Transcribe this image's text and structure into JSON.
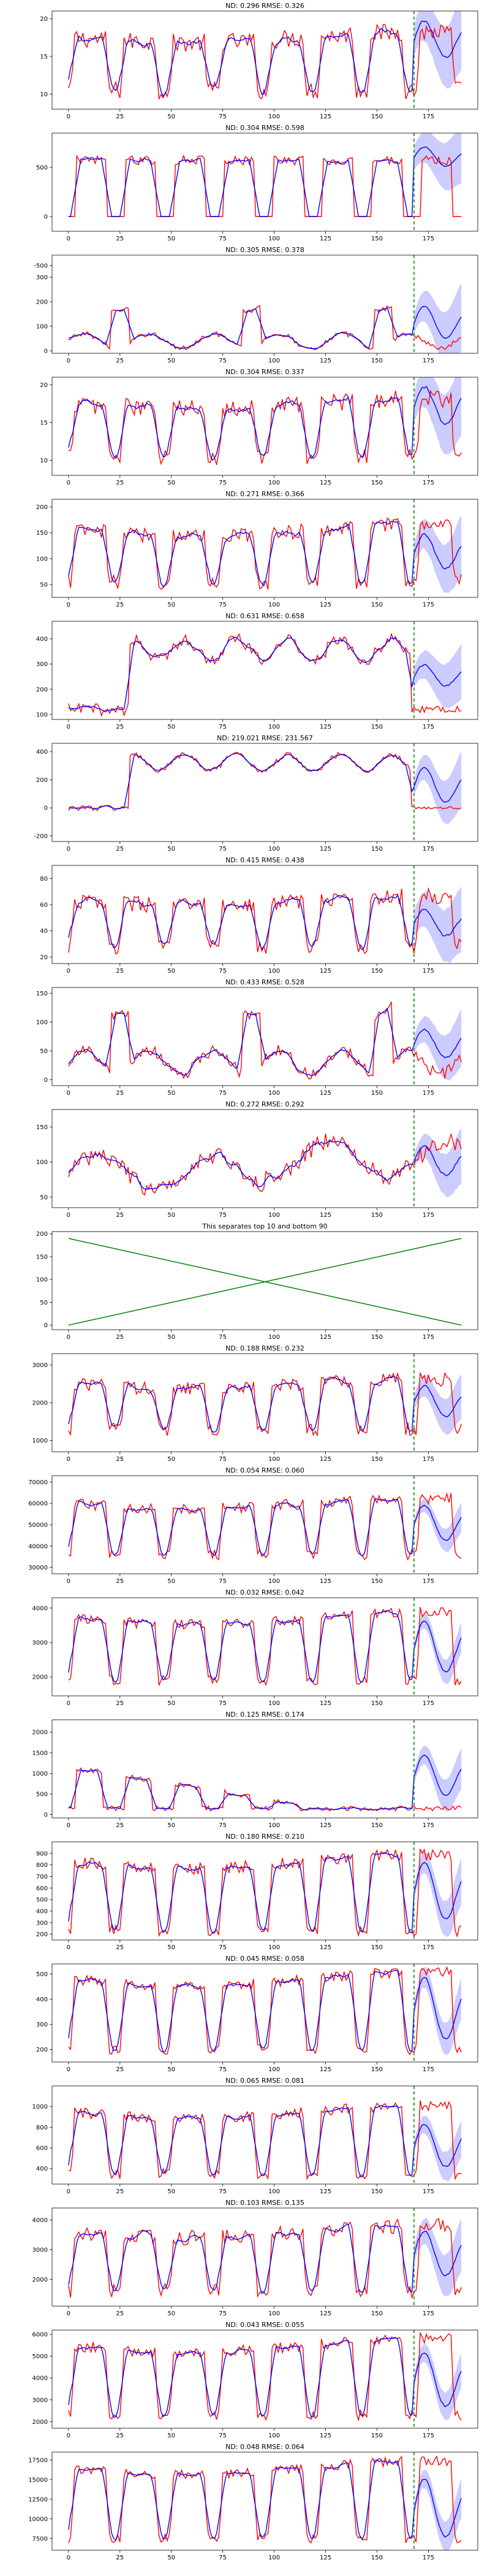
{
  "figure": {
    "background": "#ffffff",
    "colors": {
      "actual": "#ff0000",
      "forecast": "#0000ff",
      "band": "#0000ff",
      "split": "#008000",
      "separator": "#008000"
    },
    "xlim": [
      -8,
      199
    ],
    "xticks": [
      0,
      25,
      50,
      75,
      100,
      125,
      150,
      175
    ],
    "split_x": 168,
    "x_start": 0,
    "x_end": 191
  },
  "chart_data": [
    {
      "type": "line",
      "title": "ND:  0.296 RMSE:  0.326",
      "ylim": [
        8,
        21
      ],
      "yticks": [
        10,
        15,
        20
      ],
      "shape": "daily",
      "base": 10.5,
      "amp": 7,
      "noise": 1.2,
      "trend": 0,
      "band": [
        2,
        5
      ],
      "fc_end": 17,
      "fc_amp": 3,
      "phase": 0
    },
    {
      "type": "line",
      "title": "ND:  0.304 RMSE:  0.598",
      "ylim": [
        -150,
        850
      ],
      "yticks": [
        -500,
        0,
        500
      ],
      "shape": "plateau",
      "base": 0,
      "amp": 620,
      "noise": 30,
      "trend": 0,
      "band": [
        120,
        300
      ],
      "fc_end": 600,
      "fc_amp": 120,
      "phase": 0
    },
    {
      "type": "line",
      "title": "ND:  0.305 RMSE:  0.378",
      "ylim": [
        -10,
        390
      ],
      "yticks": [
        0,
        100,
        200,
        300
      ],
      "shape": "spiky",
      "base": 40,
      "amp": 30,
      "noise": 10,
      "trend": 0,
      "band": [
        40,
        140
      ],
      "fc_end": 110,
      "fc_amp": 80,
      "phase": 0
    },
    {
      "type": "line",
      "title": "ND:  0.304 RMSE:  0.337",
      "ylim": [
        8,
        21
      ],
      "yticks": [
        10,
        15,
        20
      ],
      "shape": "daily",
      "base": 10.5,
      "amp": 7,
      "noise": 1.2,
      "trend": 0,
      "band": [
        2,
        5
      ],
      "fc_end": 17,
      "fc_amp": 3,
      "phase": 0
    },
    {
      "type": "line",
      "title": "ND:  0.271 RMSE:  0.366",
      "ylim": [
        25,
        215
      ],
      "yticks": [
        50,
        100,
        150,
        200
      ],
      "shape": "daily",
      "base": 55,
      "amp": 100,
      "noise": 15,
      "trend": 0,
      "band": [
        20,
        60
      ],
      "fc_end": 110,
      "fc_amp": 40,
      "phase": 0
    },
    {
      "type": "line",
      "title": "ND:  0.631 RMSE:  0.658",
      "ylim": [
        80,
        470
      ],
      "yticks": [
        100,
        200,
        300,
        400
      ],
      "shape": "step",
      "base": 120,
      "amp": 280,
      "noise": 25,
      "trend": 0,
      "band": [
        40,
        110
      ],
      "fc_end": 250,
      "fc_amp": 50,
      "phase": 0
    },
    {
      "type": "line",
      "title": "ND:  219.021 RMSE:  231.567",
      "ylim": [
        -240,
        460
      ],
      "yticks": [
        -200,
        0,
        200,
        400
      ],
      "shape": "step",
      "base": 0,
      "amp": 380,
      "noise": 20,
      "trend": 0,
      "band": [
        60,
        200
      ],
      "fc_end": 150,
      "fc_amp": 150,
      "phase": 0
    },
    {
      "type": "line",
      "title": "ND:  0.415 RMSE:  0.438",
      "ylim": [
        15,
        90
      ],
      "yticks": [
        20,
        40,
        60,
        80
      ],
      "shape": "daily",
      "base": 28,
      "amp": 35,
      "noise": 6,
      "trend": 0,
      "band": [
        10,
        25
      ],
      "fc_end": 45,
      "fc_amp": 12,
      "phase": 0
    },
    {
      "type": "line",
      "title": "ND:  0.433 RMSE:  0.528",
      "ylim": [
        -10,
        160
      ],
      "yticks": [
        0,
        50,
        100,
        150
      ],
      "shape": "spiky",
      "base": 30,
      "amp": 20,
      "noise": 10,
      "trend": 0,
      "band": [
        15,
        50
      ],
      "fc_end": 60,
      "fc_amp": 30,
      "phase": 0
    },
    {
      "type": "line",
      "title": "ND:  0.272 RMSE:  0.292",
      "ylim": [
        35,
        175
      ],
      "yticks": [
        50,
        100,
        150
      ],
      "shape": "wave",
      "base": 85,
      "amp": 25,
      "noise": 12,
      "trend": 0,
      "band": [
        10,
        40
      ],
      "fc_end": 100,
      "fc_amp": 25,
      "phase": 0
    },
    {
      "type": "line",
      "title": "This separates top 10 and bottom 90",
      "ylim": [
        -10,
        205
      ],
      "yticks": [
        0,
        50,
        100,
        150,
        200
      ],
      "shape": "cross",
      "base": 0,
      "amp": 190,
      "noise": 0,
      "trend": 0,
      "band": [
        0,
        0
      ],
      "fc_end": 0,
      "fc_amp": 0,
      "phase": 0
    },
    {
      "type": "line",
      "title": "ND:  0.188 RMSE:  0.232",
      "ylim": [
        700,
        3300
      ],
      "yticks": [
        1000,
        2000,
        3000
      ],
      "shape": "daily",
      "base": 1300,
      "amp": 1200,
      "noise": 180,
      "trend": 0,
      "band": [
        200,
        600
      ],
      "fc_end": 2000,
      "fc_amp": 500,
      "phase": 0
    },
    {
      "type": "line",
      "title": "ND:  0.054 RMSE:  0.060",
      "ylim": [
        27000,
        73000
      ],
      "yticks": [
        30000,
        40000,
        50000,
        60000,
        70000
      ],
      "shape": "daily",
      "base": 36000,
      "amp": 24000,
      "noise": 2500,
      "trend": 0,
      "band": [
        2000,
        7000
      ],
      "fc_end": 50000,
      "fc_amp": 10000,
      "phase": 0
    },
    {
      "type": "line",
      "title": "ND:  0.032 RMSE:  0.042",
      "ylim": [
        1450,
        4300
      ],
      "yticks": [
        2000,
        3000,
        4000
      ],
      "shape": "daily",
      "base": 1900,
      "amp": 1800,
      "noise": 150,
      "trend": 0,
      "band": [
        150,
        450
      ],
      "fc_end": 2800,
      "fc_amp": 900,
      "phase": 0
    },
    {
      "type": "line",
      "title": "ND:  0.125 RMSE:  0.174",
      "ylim": [
        -80,
        2300
      ],
      "yticks": [
        0,
        500,
        1000,
        1500,
        2000
      ],
      "shape": "decay",
      "base": 150,
      "amp": 2000,
      "noise": 60,
      "trend": -4,
      "band": [
        150,
        500
      ],
      "fc_end": 900,
      "fc_amp": 600,
      "phase": 0
    },
    {
      "type": "line",
      "title": "ND:  0.180 RMSE:  0.210",
      "ylim": [
        150,
        1000
      ],
      "yticks": [
        200,
        300,
        400,
        500,
        600,
        700,
        800,
        900
      ],
      "shape": "daily",
      "base": 230,
      "amp": 600,
      "noise": 50,
      "trend": 0,
      "band": [
        60,
        200
      ],
      "fc_end": 550,
      "fc_amp": 300,
      "phase": 0
    },
    {
      "type": "line",
      "title": "ND:  0.045 RMSE:  0.058",
      "ylim": [
        150,
        540
      ],
      "yticks": [
        200,
        300,
        400,
        500
      ],
      "shape": "daily",
      "base": 200,
      "amp": 280,
      "noise": 20,
      "trend": 0,
      "band": [
        30,
        80
      ],
      "fc_end": 350,
      "fc_amp": 150,
      "phase": 0
    },
    {
      "type": "line",
      "title": "ND:  0.065 RMSE:  0.081",
      "ylim": [
        250,
        1200
      ],
      "yticks": [
        400,
        600,
        800,
        1000
      ],
      "shape": "daily",
      "base": 350,
      "amp": 600,
      "noise": 50,
      "trend": 0,
      "band": [
        60,
        180
      ],
      "fc_end": 600,
      "fc_amp": 250,
      "phase": 0
    },
    {
      "type": "line",
      "title": "ND:  0.103 RMSE:  0.135",
      "ylim": [
        1100,
        4400
      ],
      "yticks": [
        2000,
        3000,
        4000
      ],
      "shape": "daily",
      "base": 1600,
      "amp": 2000,
      "noise": 250,
      "trend": 0,
      "band": [
        300,
        900
      ],
      "fc_end": 2800,
      "fc_amp": 900,
      "phase": 0
    },
    {
      "type": "line",
      "title": "ND:  0.043 RMSE:  0.055",
      "ylim": [
        1700,
        6200
      ],
      "yticks": [
        2000,
        3000,
        4000,
        5000,
        6000
      ],
      "shape": "daily",
      "base": 2300,
      "amp": 3200,
      "noise": 250,
      "trend": 0,
      "band": [
        300,
        800
      ],
      "fc_end": 3800,
      "fc_amp": 1500,
      "phase": 0
    },
    {
      "type": "line",
      "title": "ND:  0.048 RMSE:  0.064",
      "ylim": [
        6000,
        18500
      ],
      "yticks": [
        7500,
        10000,
        12500,
        15000,
        17500
      ],
      "shape": "daily",
      "base": 7500,
      "amp": 9000,
      "noise": 600,
      "trend": 0,
      "band": [
        800,
        2500
      ],
      "fc_end": 11000,
      "fc_amp": 4500,
      "phase": 0
    }
  ]
}
